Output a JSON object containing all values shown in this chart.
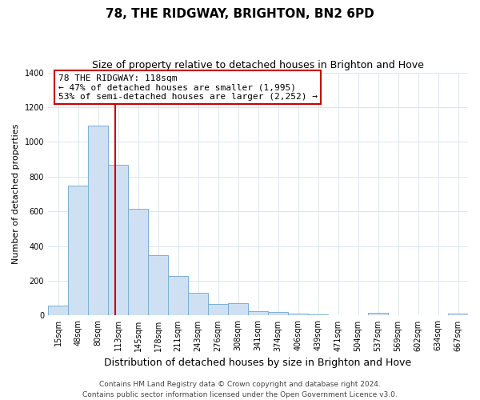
{
  "title": "78, THE RIDGWAY, BRIGHTON, BN2 6PD",
  "subtitle": "Size of property relative to detached houses in Brighton and Hove",
  "xlabel": "Distribution of detached houses by size in Brighton and Hove",
  "ylabel": "Number of detached properties",
  "bar_labels": [
    "15sqm",
    "48sqm",
    "80sqm",
    "113sqm",
    "145sqm",
    "178sqm",
    "211sqm",
    "243sqm",
    "276sqm",
    "308sqm",
    "341sqm",
    "374sqm",
    "406sqm",
    "439sqm",
    "471sqm",
    "504sqm",
    "537sqm",
    "569sqm",
    "602sqm",
    "634sqm",
    "667sqm"
  ],
  "bar_values": [
    55,
    750,
    1095,
    870,
    615,
    348,
    228,
    130,
    65,
    72,
    25,
    20,
    10,
    8,
    2,
    0,
    15,
    0,
    0,
    0,
    12
  ],
  "bar_color": "#cfe0f3",
  "bar_edge_color": "#7bafd4",
  "vline_color": "#cc0000",
  "vline_pos": 2.85,
  "annotation_text": "78 THE RIDGWAY: 118sqm\n← 47% of detached houses are smaller (1,995)\n53% of semi-detached houses are larger (2,252) →",
  "annotation_box_color": "#ffffff",
  "annotation_box_edge": "#cc0000",
  "ylim": [
    0,
    1400
  ],
  "yticks": [
    0,
    200,
    400,
    600,
    800,
    1000,
    1200,
    1400
  ],
  "footer_line1": "Contains HM Land Registry data © Crown copyright and database right 2024.",
  "footer_line2": "Contains public sector information licensed under the Open Government Licence v3.0.",
  "title_fontsize": 11,
  "subtitle_fontsize": 9,
  "xlabel_fontsize": 9,
  "ylabel_fontsize": 8,
  "tick_fontsize": 7,
  "footer_fontsize": 6.5,
  "annot_fontsize": 8
}
